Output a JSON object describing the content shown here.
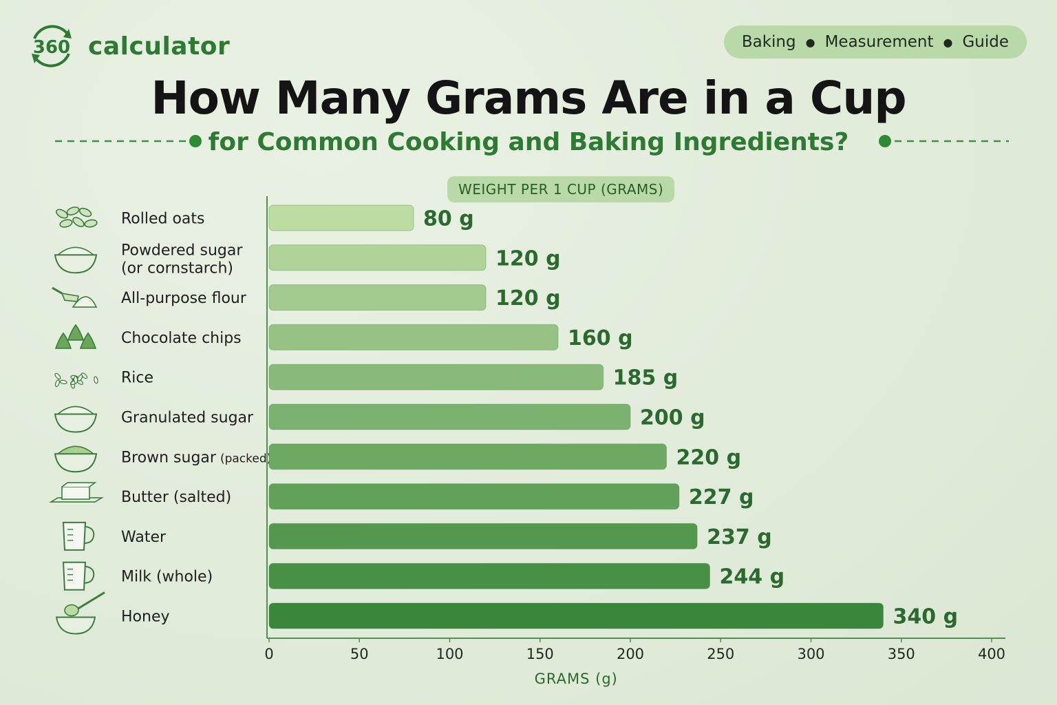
{
  "brand": {
    "name": "calculator",
    "logo_number": "360"
  },
  "tags": [
    "Baking",
    "Measurement",
    "Guide"
  ],
  "colors": {
    "accent": "#2d7a33",
    "pill": "#b9d9a9",
    "bar_light": "#bcdc9f",
    "bar_dark": "#3a8a3a"
  },
  "chart_data": {
    "type": "bar",
    "orientation": "horizontal",
    "title": "How Many Grams Are in a Cup",
    "subtitle": "for Common Cooking and Baking Ingredients?",
    "series_label": "WEIGHT PER 1 CUP (GRAMS)",
    "xlabel": "GRAMS (g)",
    "xlim": [
      0,
      400
    ],
    "xticks": [
      "0",
      "50",
      "100",
      "150",
      "200",
      "250",
      "300",
      "350",
      "400"
    ],
    "items": [
      {
        "label": "Rolled oats",
        "value": 80,
        "value_label": "80 g",
        "icon": "oats-icon"
      },
      {
        "label": "Powdered sugar",
        "label2": "(or cornstarch)",
        "value": 120,
        "value_label": "120 g",
        "icon": "bowl-powder-icon"
      },
      {
        "label": "All-purpose flour",
        "value": 120,
        "value_label": "120 g",
        "icon": "flour-scoop-icon"
      },
      {
        "label": "Chocolate chips",
        "value": 160,
        "value_label": "160 g",
        "icon": "chocolate-chips-icon"
      },
      {
        "label": "Rice",
        "value": 185,
        "value_label": "185 g",
        "icon": "rice-icon"
      },
      {
        "label": "Granulated sugar",
        "value": 200,
        "value_label": "200 g",
        "icon": "sugar-bowl-icon"
      },
      {
        "label": "Brown sugar",
        "label_suffix": "(packed)",
        "value": 220,
        "value_label": "220 g",
        "icon": "brown-sugar-bowl-icon"
      },
      {
        "label": "Butter (salted)",
        "value": 227,
        "value_label": "227 g",
        "icon": "butter-icon"
      },
      {
        "label": "Water",
        "value": 237,
        "value_label": "237 g",
        "icon": "measuring-cup-icon"
      },
      {
        "label": "Milk (whole)",
        "value": 244,
        "value_label": "244 g",
        "icon": "measuring-cup-icon"
      },
      {
        "label": "Honey",
        "value": 340,
        "value_label": "340 g",
        "icon": "honey-bowl-icon"
      }
    ]
  }
}
